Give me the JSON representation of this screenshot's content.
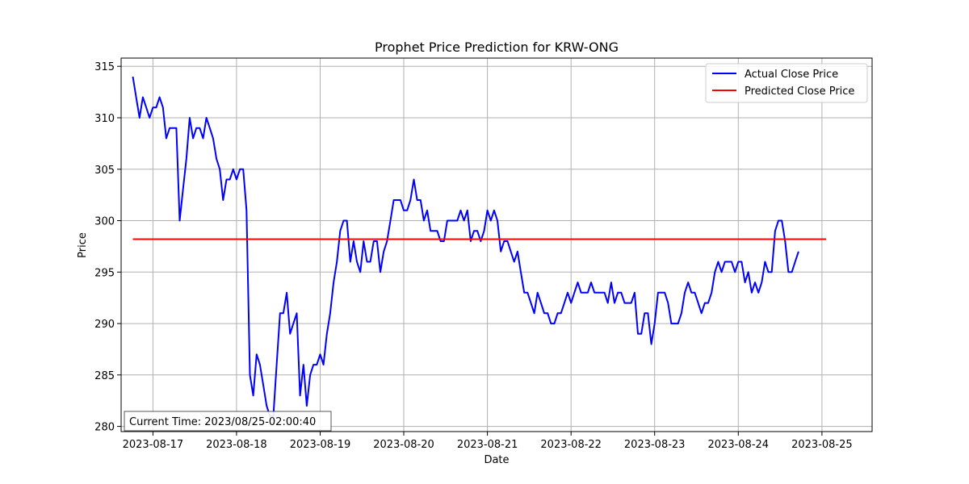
{
  "chart_data": {
    "type": "line",
    "title": "Prophet Price Prediction for KRW-ONG",
    "xlabel": "Date",
    "ylabel": "Price",
    "x_ticks": [
      {
        "t": 1,
        "label": "2023-08-17"
      },
      {
        "t": 2,
        "label": "2023-08-18"
      },
      {
        "t": 3,
        "label": "2023-08-19"
      },
      {
        "t": 4,
        "label": "2023-08-20"
      },
      {
        "t": 5,
        "label": "2023-08-21"
      },
      {
        "t": 6,
        "label": "2023-08-22"
      },
      {
        "t": 7,
        "label": "2023-08-23"
      },
      {
        "t": 8,
        "label": "2023-08-24"
      },
      {
        "t": 9,
        "label": "2023-08-25"
      }
    ],
    "y_ticks": [
      280,
      285,
      290,
      295,
      300,
      305,
      310,
      315
    ],
    "xlim": [
      0.62,
      9.6
    ],
    "ylim": [
      279.5,
      315.8
    ],
    "grid": true,
    "legend_position": "top-right",
    "annotation": "Current Time: 2023/08/25-02:00:40",
    "series": [
      {
        "name": "Actual Close Price",
        "color": "#0000ff",
        "points": [
          [
            0.76,
            314
          ],
          [
            0.8,
            312
          ],
          [
            0.84,
            310
          ],
          [
            0.88,
            312
          ],
          [
            0.92,
            311
          ],
          [
            0.96,
            310
          ],
          [
            1.0,
            311
          ],
          [
            1.04,
            311
          ],
          [
            1.08,
            312
          ],
          [
            1.12,
            311
          ],
          [
            1.16,
            308
          ],
          [
            1.2,
            309
          ],
          [
            1.24,
            309
          ],
          [
            1.28,
            309
          ],
          [
            1.32,
            300
          ],
          [
            1.36,
            303
          ],
          [
            1.4,
            306
          ],
          [
            1.44,
            310
          ],
          [
            1.48,
            308
          ],
          [
            1.52,
            309
          ],
          [
            1.56,
            309
          ],
          [
            1.6,
            308
          ],
          [
            1.64,
            310
          ],
          [
            1.68,
            309
          ],
          [
            1.72,
            308
          ],
          [
            1.76,
            306
          ],
          [
            1.8,
            305
          ],
          [
            1.84,
            302
          ],
          [
            1.88,
            304
          ],
          [
            1.92,
            304
          ],
          [
            1.96,
            305
          ],
          [
            2.0,
            304
          ],
          [
            2.04,
            305
          ],
          [
            2.08,
            305
          ],
          [
            2.12,
            301
          ],
          [
            2.16,
            285
          ],
          [
            2.2,
            283
          ],
          [
            2.24,
            287
          ],
          [
            2.28,
            286
          ],
          [
            2.32,
            284
          ],
          [
            2.36,
            282
          ],
          [
            2.4,
            281
          ],
          [
            2.44,
            281
          ],
          [
            2.48,
            286
          ],
          [
            2.52,
            291
          ],
          [
            2.56,
            291
          ],
          [
            2.6,
            293
          ],
          [
            2.64,
            289
          ],
          [
            2.68,
            290
          ],
          [
            2.72,
            291
          ],
          [
            2.76,
            283
          ],
          [
            2.8,
            286
          ],
          [
            2.84,
            282
          ],
          [
            2.88,
            285
          ],
          [
            2.92,
            286
          ],
          [
            2.96,
            286
          ],
          [
            3.0,
            287
          ],
          [
            3.04,
            286
          ],
          [
            3.08,
            289
          ],
          [
            3.12,
            291
          ],
          [
            3.16,
            294
          ],
          [
            3.2,
            296
          ],
          [
            3.24,
            299
          ],
          [
            3.28,
            300
          ],
          [
            3.32,
            300
          ],
          [
            3.36,
            296
          ],
          [
            3.4,
            298
          ],
          [
            3.44,
            296
          ],
          [
            3.48,
            295
          ],
          [
            3.52,
            298
          ],
          [
            3.56,
            296
          ],
          [
            3.6,
            296
          ],
          [
            3.64,
            298
          ],
          [
            3.68,
            298
          ],
          [
            3.72,
            295
          ],
          [
            3.76,
            297
          ],
          [
            3.8,
            298
          ],
          [
            3.84,
            300
          ],
          [
            3.88,
            302
          ],
          [
            3.92,
            302
          ],
          [
            3.96,
            302
          ],
          [
            4.0,
            301
          ],
          [
            4.04,
            301
          ],
          [
            4.08,
            302
          ],
          [
            4.12,
            304
          ],
          [
            4.16,
            302
          ],
          [
            4.2,
            302
          ],
          [
            4.24,
            300
          ],
          [
            4.28,
            301
          ],
          [
            4.32,
            299
          ],
          [
            4.36,
            299
          ],
          [
            4.4,
            299
          ],
          [
            4.44,
            298
          ],
          [
            4.48,
            298
          ],
          [
            4.52,
            300
          ],
          [
            4.56,
            300
          ],
          [
            4.6,
            300
          ],
          [
            4.64,
            300
          ],
          [
            4.68,
            301
          ],
          [
            4.72,
            300
          ],
          [
            4.76,
            301
          ],
          [
            4.8,
            298
          ],
          [
            4.84,
            299
          ],
          [
            4.88,
            299
          ],
          [
            4.92,
            298
          ],
          [
            4.96,
            299
          ],
          [
            5.0,
            301
          ],
          [
            5.04,
            300
          ],
          [
            5.08,
            301
          ],
          [
            5.12,
            300
          ],
          [
            5.16,
            297
          ],
          [
            5.2,
            298
          ],
          [
            5.24,
            298
          ],
          [
            5.28,
            297
          ],
          [
            5.32,
            296
          ],
          [
            5.36,
            297
          ],
          [
            5.4,
            295
          ],
          [
            5.44,
            293
          ],
          [
            5.48,
            293
          ],
          [
            5.52,
            292
          ],
          [
            5.56,
            291
          ],
          [
            5.6,
            293
          ],
          [
            5.64,
            292
          ],
          [
            5.68,
            291
          ],
          [
            5.72,
            291
          ],
          [
            5.76,
            290
          ],
          [
            5.8,
            290
          ],
          [
            5.84,
            291
          ],
          [
            5.88,
            291
          ],
          [
            5.92,
            292
          ],
          [
            5.96,
            293
          ],
          [
            6.0,
            292
          ],
          [
            6.04,
            293
          ],
          [
            6.08,
            294
          ],
          [
            6.12,
            293
          ],
          [
            6.16,
            293
          ],
          [
            6.2,
            293
          ],
          [
            6.24,
            294
          ],
          [
            6.28,
            293
          ],
          [
            6.32,
            293
          ],
          [
            6.36,
            293
          ],
          [
            6.4,
            293
          ],
          [
            6.44,
            292
          ],
          [
            6.48,
            294
          ],
          [
            6.52,
            292
          ],
          [
            6.56,
            293
          ],
          [
            6.6,
            293
          ],
          [
            6.64,
            292
          ],
          [
            6.68,
            292
          ],
          [
            6.72,
            292
          ],
          [
            6.76,
            293
          ],
          [
            6.8,
            289
          ],
          [
            6.84,
            289
          ],
          [
            6.88,
            291
          ],
          [
            6.92,
            291
          ],
          [
            6.96,
            288
          ],
          [
            7.0,
            290
          ],
          [
            7.04,
            293
          ],
          [
            7.08,
            293
          ],
          [
            7.12,
            293
          ],
          [
            7.16,
            292
          ],
          [
            7.2,
            290
          ],
          [
            7.24,
            290
          ],
          [
            7.28,
            290
          ],
          [
            7.32,
            291
          ],
          [
            7.36,
            293
          ],
          [
            7.4,
            294
          ],
          [
            7.44,
            293
          ],
          [
            7.48,
            293
          ],
          [
            7.52,
            292
          ],
          [
            7.56,
            291
          ],
          [
            7.6,
            292
          ],
          [
            7.64,
            292
          ],
          [
            7.68,
            293
          ],
          [
            7.72,
            295
          ],
          [
            7.76,
            296
          ],
          [
            7.8,
            295
          ],
          [
            7.84,
            296
          ],
          [
            7.88,
            296
          ],
          [
            7.92,
            296
          ],
          [
            7.96,
            295
          ],
          [
            8.0,
            296
          ],
          [
            8.04,
            296
          ],
          [
            8.08,
            294
          ],
          [
            8.12,
            295
          ],
          [
            8.16,
            293
          ],
          [
            8.2,
            294
          ],
          [
            8.24,
            293
          ],
          [
            8.28,
            294
          ],
          [
            8.32,
            296
          ],
          [
            8.36,
            295
          ],
          [
            8.4,
            295
          ],
          [
            8.44,
            299
          ],
          [
            8.48,
            300
          ],
          [
            8.52,
            300
          ],
          [
            8.56,
            298
          ],
          [
            8.6,
            295
          ],
          [
            8.64,
            295
          ],
          [
            8.68,
            296
          ],
          [
            8.72,
            297
          ]
        ]
      },
      {
        "name": "Predicted Close Price",
        "color": "#ff0000",
        "points": [
          [
            0.76,
            298.2
          ],
          [
            9.05,
            298.2
          ]
        ]
      }
    ]
  }
}
